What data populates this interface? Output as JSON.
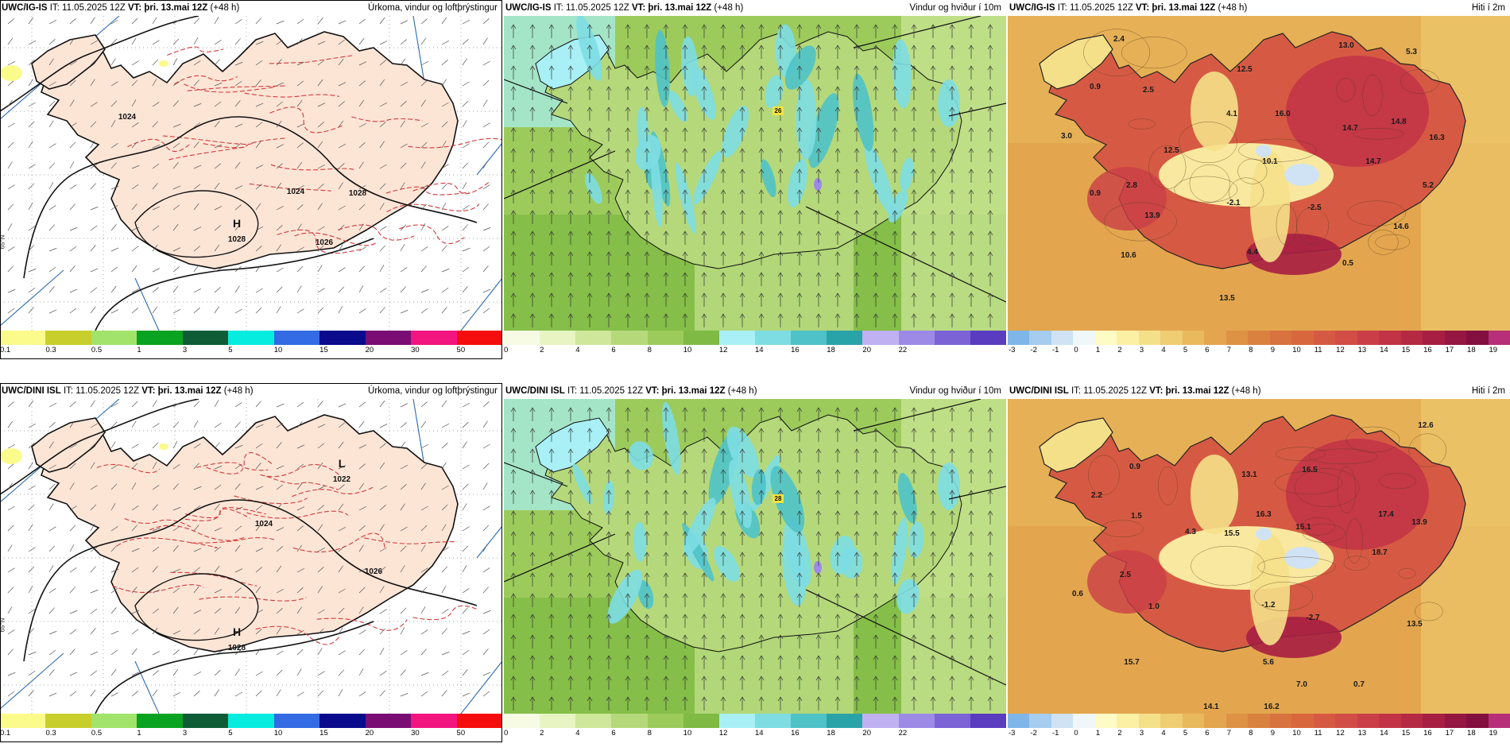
{
  "panels": [
    {
      "id": "igis-precip",
      "model": "UWC/IG-IS",
      "it": "IT: 11.05.2025 12Z",
      "vt": "VT: þri. 13.mai 12Z",
      "lead": "(+48 h)",
      "title": "Úrkoma, vindur og loftþrýstingur",
      "kind": "precip",
      "ticks": [
        "0.1",
        "0.3",
        "0.5",
        "1",
        "3",
        "5",
        "10",
        "15",
        "20",
        "30",
        "50"
      ],
      "colors": [
        "#fbfb8c",
        "#c8cf2d",
        "#a2e36c",
        "#09a221",
        "#0d5c36",
        "#06ecdf",
        "#326be3",
        "#0a0a8c",
        "#7a0d73",
        "#f2157f",
        "#f50d0d"
      ],
      "pressure_labels": [
        {
          "text": "H",
          "big": true
        },
        {
          "text": "1028"
        },
        {
          "text": "1024"
        },
        {
          "text": "1024"
        },
        {
          "text": "1028"
        },
        {
          "text": "1026"
        }
      ],
      "side_label": "65°N"
    },
    {
      "id": "igis-wind",
      "model": "UWC/IG-IS",
      "it": "IT: 11.05.2025 12Z",
      "vt": "VT: þri. 13.mai 12Z",
      "lead": "(+48 h)",
      "title": "Vindur og hviður í 10m",
      "kind": "wind",
      "ticks": [
        "0",
        "2",
        "4",
        "6",
        "8",
        "10",
        "12",
        "14",
        "16",
        "18",
        "20",
        "22"
      ],
      "colors": [
        "#f7fbe4",
        "#e8f4c2",
        "#cfe79a",
        "#b5d97a",
        "#9ccb5c",
        "#7fba44",
        "#a8f0f5",
        "#7ddde3",
        "#4fc2c8",
        "#2aa3a8",
        "#bfb1f2",
        "#9d8ae6",
        "#7b63d6",
        "#5a3cc0"
      ],
      "gust_label": "26"
    },
    {
      "id": "igis-temp",
      "model": "UWC/IG-IS",
      "it": "IT: 11.05.2025 12Z",
      "vt": "VT: þri. 13.mai 12Z",
      "lead": "(+48 h)",
      "title": "Hiti í 2m",
      "kind": "temp",
      "ticks": [
        "-3",
        "-2",
        "-1",
        "0",
        "1",
        "2",
        "3",
        "4",
        "5",
        "6",
        "7",
        "8",
        "9",
        "10",
        "11",
        "12",
        "13",
        "14",
        "15",
        "16",
        "17",
        "18",
        "19"
      ],
      "colors": [
        "#7fb6e8",
        "#a6cdef",
        "#cfe3f4",
        "#f0f7f8",
        "#fffbc4",
        "#fbf0a4",
        "#f5e08a",
        "#efcd72",
        "#e9b95e",
        "#e3a64e",
        "#dd9244",
        "#d9823f",
        "#d8723e",
        "#d9673e",
        "#d65a43",
        "#d14d46",
        "#ca3f47",
        "#c23346",
        "#b52943",
        "#a61f42",
        "#951641",
        "#830f3f",
        "#b62f78"
      ],
      "values": [
        "2.4",
        "13.0",
        "5.3",
        "0.9",
        "2.5",
        "12.5",
        "4.1",
        "16.0",
        "14.7",
        "14.8",
        "16.3",
        "3.0",
        "12.5",
        "10.1",
        "14.7",
        "2.8",
        "5.2",
        "0.9",
        "-2.1",
        "-2.5",
        "14.6",
        "13.9",
        "4.4",
        "10.6",
        "0.5",
        "13.5"
      ]
    },
    {
      "id": "dini-precip",
      "model": "UWC/DINI ISL",
      "it": "IT: 11.05.2025 12Z",
      "vt": "VT: þri. 13.mai 12Z",
      "lead": "(+48 h)",
      "title": "Úrkoma, vindur og loftþrýstingur",
      "kind": "precip",
      "ticks": [
        "0.1",
        "0.3",
        "0.5",
        "1",
        "3",
        "5",
        "10",
        "15",
        "20",
        "30",
        "50"
      ],
      "colors": [
        "#fbfb8c",
        "#c8cf2d",
        "#a2e36c",
        "#09a221",
        "#0d5c36",
        "#06ecdf",
        "#326be3",
        "#0a0a8c",
        "#7a0d73",
        "#f2157f",
        "#f50d0d"
      ],
      "pressure_labels": [
        {
          "text": "L",
          "big": true
        },
        {
          "text": "1022"
        },
        {
          "text": "H",
          "big": true
        },
        {
          "text": "1028"
        },
        {
          "text": "1024"
        },
        {
          "text": "1026"
        }
      ],
      "side_label": "65°N"
    },
    {
      "id": "dini-wind",
      "model": "UWC/DINI ISL",
      "it": "IT: 11.05.2025 12Z",
      "vt": "VT: þri. 13.mai 12Z",
      "lead": "(+48 h)",
      "title": "Vindur og hviður í 10m",
      "kind": "wind",
      "ticks": [
        "0",
        "2",
        "4",
        "6",
        "8",
        "10",
        "12",
        "14",
        "16",
        "18",
        "20",
        "22"
      ],
      "colors": [
        "#f7fbe4",
        "#e8f4c2",
        "#cfe79a",
        "#b5d97a",
        "#9ccb5c",
        "#7fba44",
        "#a8f0f5",
        "#7ddde3",
        "#4fc2c8",
        "#2aa3a8",
        "#bfb1f2",
        "#9d8ae6",
        "#7b63d6",
        "#5a3cc0"
      ],
      "gust_label": "28"
    },
    {
      "id": "dini-temp",
      "model": "UWC/DINI ISL",
      "it": "IT: 11.05.2025 12Z",
      "vt": "VT: þri. 13.mai 12Z",
      "lead": "(+48 h)",
      "title": "Hiti í 2m",
      "kind": "temp",
      "ticks": [
        "-3",
        "-2",
        "-1",
        "0",
        "1",
        "2",
        "3",
        "4",
        "5",
        "6",
        "7",
        "8",
        "9",
        "10",
        "11",
        "12",
        "13",
        "14",
        "15",
        "16",
        "17",
        "18",
        "19"
      ],
      "colors": [
        "#7fb6e8",
        "#a6cdef",
        "#cfe3f4",
        "#f0f7f8",
        "#fffbc4",
        "#fbf0a4",
        "#f5e08a",
        "#efcd72",
        "#e9b95e",
        "#e3a64e",
        "#dd9244",
        "#d9823f",
        "#d8723e",
        "#d9673e",
        "#d65a43",
        "#d14d46",
        "#ca3f47",
        "#c23346",
        "#b52943",
        "#a61f42",
        "#951641",
        "#830f3f",
        "#b62f78"
      ],
      "values": [
        "12.6",
        "0.9",
        "13.1",
        "16.5",
        "2.2",
        "1.5",
        "4.3",
        "15.5",
        "16.3",
        "15.1",
        "17.4",
        "13.9",
        "2.5",
        "18.7",
        "0.6",
        "1.0",
        "-1.2",
        "-2.7",
        "13.5",
        "5.6",
        "15.7",
        "7.0",
        "0.7",
        "14.1",
        "16.2"
      ]
    }
  ]
}
